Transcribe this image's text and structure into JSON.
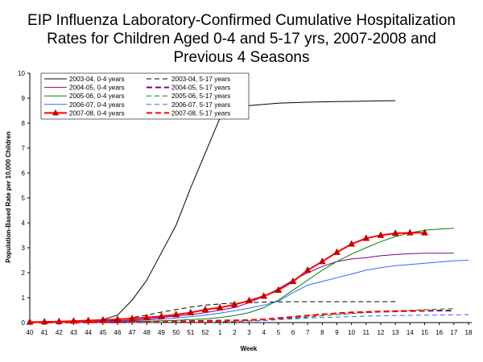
{
  "chart_data": {
    "type": "line",
    "title_lines": [
      "EIP Influenza Laboratory-Confirmed Cumulative Hospitalization",
      "Rates for Children Aged 0-4 and 5-17 yrs, 2007-2008 and",
      "Previous 4 Seasons"
    ],
    "xlabel": "Week",
    "ylabel": "Population-Based Rate per 10,000 Children",
    "ylim": [
      0,
      10
    ],
    "yticks": [
      "0",
      "1",
      "2",
      "3",
      "4",
      "5",
      "6",
      "7",
      "8",
      "9",
      "10"
    ],
    "categories": [
      "40",
      "41",
      "42",
      "43",
      "44",
      "45",
      "46",
      "47",
      "48",
      "49",
      "50",
      "51",
      "52",
      "1",
      "2",
      "3",
      "4",
      "5",
      "6",
      "7",
      "8",
      "9",
      "10",
      "11",
      "12",
      "13",
      "14",
      "15",
      "16",
      "17",
      "18"
    ],
    "grid": false,
    "legend_position": "top-left",
    "series": [
      {
        "name": "2003-04, 0-4 years",
        "color": "#000000",
        "dash": "solid",
        "width": 1,
        "marker": "none",
        "values": [
          0.02,
          0.03,
          0.04,
          0.06,
          0.08,
          0.12,
          0.3,
          0.9,
          1.7,
          2.8,
          3.9,
          5.4,
          6.8,
          8.2,
          8.6,
          8.7,
          8.75,
          8.8,
          8.82,
          8.84,
          8.85,
          8.86,
          8.87,
          8.88,
          8.89,
          8.9,
          null,
          null,
          null,
          null,
          null
        ]
      },
      {
        "name": "2003-04, 5-17 years",
        "color": "#000000",
        "dash": "dashed",
        "width": 1,
        "marker": "none",
        "values": [
          0.0,
          0.01,
          0.01,
          0.02,
          0.03,
          0.05,
          0.1,
          0.2,
          0.3,
          0.42,
          0.52,
          0.62,
          0.7,
          0.75,
          0.78,
          0.8,
          0.82,
          0.83,
          0.84,
          0.84,
          0.84,
          0.84,
          0.84,
          0.84,
          0.84,
          0.84,
          null,
          null,
          null,
          null,
          null
        ]
      },
      {
        "name": "2004-05, 0-4 years",
        "color": "#800080",
        "dash": "solid",
        "width": 1,
        "marker": "none",
        "values": [
          0.01,
          0.01,
          0.02,
          0.02,
          0.03,
          0.05,
          0.07,
          0.1,
          0.14,
          0.2,
          0.26,
          0.32,
          0.4,
          0.5,
          0.6,
          0.8,
          1.05,
          1.35,
          1.7,
          2.0,
          2.25,
          2.45,
          2.55,
          2.6,
          2.68,
          2.73,
          2.76,
          2.78,
          2.78,
          2.78,
          null
        ]
      },
      {
        "name": "2004-05, 5-17 years",
        "color": "#800080",
        "dash": "dashed",
        "width": 2,
        "marker": "none",
        "values": [
          0.0,
          0.0,
          0.0,
          0.0,
          0.01,
          0.01,
          0.01,
          0.02,
          0.03,
          0.04,
          0.05,
          0.06,
          0.07,
          0.08,
          0.09,
          0.1,
          0.13,
          0.17,
          0.22,
          0.28,
          0.33,
          0.37,
          0.4,
          0.42,
          0.44,
          0.45,
          0.46,
          0.47,
          0.48,
          0.48,
          null
        ]
      },
      {
        "name": "2005-06, 0-4 years",
        "color": "#008000",
        "dash": "solid",
        "width": 1,
        "marker": "none",
        "values": [
          0.0,
          0.0,
          0.01,
          0.01,
          0.01,
          0.02,
          0.03,
          0.04,
          0.05,
          0.07,
          0.09,
          0.12,
          0.15,
          0.2,
          0.28,
          0.4,
          0.6,
          0.9,
          1.3,
          1.7,
          2.1,
          2.45,
          2.75,
          3.0,
          3.25,
          3.45,
          3.6,
          3.7,
          3.75,
          3.78,
          null
        ]
      },
      {
        "name": "2005-06, 5-17 years",
        "color": "#008000",
        "dash": "dashed",
        "width": 1,
        "marker": "none",
        "values": [
          0.0,
          0.0,
          0.0,
          0.0,
          0.0,
          0.0,
          0.0,
          0.0,
          0.01,
          0.01,
          0.01,
          0.02,
          0.02,
          0.03,
          0.04,
          0.06,
          0.08,
          0.12,
          0.17,
          0.22,
          0.27,
          0.32,
          0.36,
          0.4,
          0.43,
          0.46,
          0.49,
          0.52,
          0.54,
          0.56,
          null
        ]
      },
      {
        "name": "2006-07, 0-4 years",
        "color": "#3366FF",
        "dash": "solid",
        "width": 1,
        "marker": "none",
        "values": [
          0.0,
          0.0,
          0.01,
          0.01,
          0.02,
          0.03,
          0.05,
          0.07,
          0.1,
          0.14,
          0.18,
          0.24,
          0.3,
          0.38,
          0.47,
          0.58,
          0.7,
          0.85,
          1.2,
          1.5,
          1.65,
          1.8,
          1.95,
          2.1,
          2.2,
          2.28,
          2.33,
          2.38,
          2.43,
          2.48,
          2.5
        ]
      },
      {
        "name": "2006-07, 5-17 years",
        "color": "#3366FF",
        "dash": "dashed",
        "width": 1,
        "marker": "none",
        "values": [
          0.0,
          0.0,
          0.0,
          0.0,
          0.0,
          0.0,
          0.0,
          0.01,
          0.01,
          0.01,
          0.02,
          0.02,
          0.03,
          0.04,
          0.05,
          0.07,
          0.09,
          0.12,
          0.15,
          0.18,
          0.2,
          0.22,
          0.24,
          0.26,
          0.27,
          0.28,
          0.29,
          0.3,
          0.3,
          0.31,
          0.32
        ]
      },
      {
        "name": "2007-08, 0-4 years",
        "color": "#FF0000",
        "dash": "solid",
        "width": 2,
        "marker": "triangle",
        "values": [
          0.02,
          0.03,
          0.04,
          0.06,
          0.08,
          0.1,
          0.13,
          0.16,
          0.2,
          0.25,
          0.32,
          0.4,
          0.52,
          0.6,
          0.72,
          0.88,
          1.06,
          1.3,
          1.65,
          2.1,
          2.45,
          2.82,
          3.15,
          3.38,
          3.5,
          3.58,
          3.6,
          3.6,
          null,
          null,
          null
        ]
      },
      {
        "name": "2007-08, 5-17 years",
        "color": "#FF0000",
        "dash": "dashed",
        "width": 2,
        "marker": "none",
        "values": [
          0.0,
          0.0,
          0.0,
          0.0,
          0.01,
          0.01,
          0.01,
          0.02,
          0.02,
          0.03,
          0.03,
          0.04,
          0.05,
          0.06,
          0.08,
          0.1,
          0.13,
          0.18,
          0.23,
          0.28,
          0.33,
          0.37,
          0.41,
          0.43,
          0.45,
          0.46,
          0.47,
          0.47,
          null,
          null,
          null
        ]
      }
    ]
  }
}
